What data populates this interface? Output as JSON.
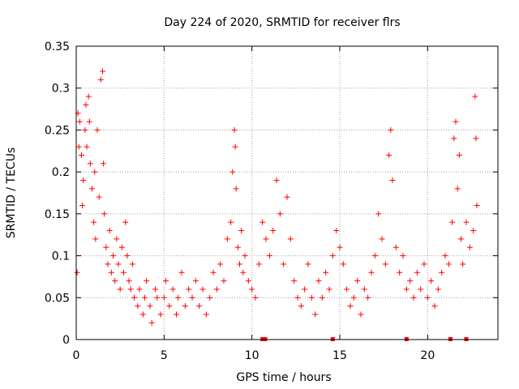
{
  "chart_data": {
    "type": "scatter",
    "title": "Day 224 of 2020, SRMTID for receiver flrs",
    "xlabel": "GPS time / hours",
    "ylabel": "SRMTID / TECUs",
    "xlim": [
      0,
      24
    ],
    "ylim": [
      0,
      0.35
    ],
    "x_ticks": [
      0,
      5,
      10,
      15,
      20
    ],
    "y_ticks": [
      0,
      0.05,
      0.1,
      0.15,
      0.2,
      0.25,
      0.3,
      0.35
    ],
    "x_tick_labels": [
      "0",
      "5",
      "10",
      "15",
      "20"
    ],
    "y_tick_labels": [
      "0",
      "0.05",
      "0.1",
      "0.15",
      "0.2",
      "0.25",
      "0.3",
      "0.35"
    ],
    "grid": true,
    "marker": "+",
    "color": "#ff0000",
    "gap_markers_x": [
      10.6,
      10.75,
      14.6,
      18.8,
      21.3,
      22.2
    ],
    "series": [
      {
        "name": "SRMTID",
        "points": [
          [
            0.05,
            0.08
          ],
          [
            0.1,
            0.27
          ],
          [
            0.15,
            0.23
          ],
          [
            0.2,
            0.26
          ],
          [
            0.3,
            0.22
          ],
          [
            0.35,
            0.16
          ],
          [
            0.4,
            0.19
          ],
          [
            0.5,
            0.25
          ],
          [
            0.55,
            0.28
          ],
          [
            0.6,
            0.23
          ],
          [
            0.7,
            0.29
          ],
          [
            0.75,
            0.26
          ],
          [
            0.8,
            0.21
          ],
          [
            0.9,
            0.18
          ],
          [
            1.0,
            0.14
          ],
          [
            1.05,
            0.2
          ],
          [
            1.1,
            0.12
          ],
          [
            1.2,
            0.25
          ],
          [
            1.3,
            0.17
          ],
          [
            1.4,
            0.31
          ],
          [
            1.5,
            0.32
          ],
          [
            1.55,
            0.21
          ],
          [
            1.6,
            0.15
          ],
          [
            1.7,
            0.11
          ],
          [
            1.8,
            0.09
          ],
          [
            1.9,
            0.13
          ],
          [
            2.0,
            0.08
          ],
          [
            2.1,
            0.1
          ],
          [
            2.2,
            0.07
          ],
          [
            2.3,
            0.12
          ],
          [
            2.4,
            0.09
          ],
          [
            2.5,
            0.06
          ],
          [
            2.6,
            0.11
          ],
          [
            2.7,
            0.08
          ],
          [
            2.8,
            0.14
          ],
          [
            2.9,
            0.1
          ],
          [
            3.0,
            0.07
          ],
          [
            3.1,
            0.06
          ],
          [
            3.2,
            0.09
          ],
          [
            3.3,
            0.05
          ],
          [
            3.5,
            0.04
          ],
          [
            3.6,
            0.06
          ],
          [
            3.8,
            0.03
          ],
          [
            3.9,
            0.05
          ],
          [
            4.0,
            0.07
          ],
          [
            4.2,
            0.04
          ],
          [
            4.3,
            0.02
          ],
          [
            4.5,
            0.06
          ],
          [
            4.6,
            0.05
          ],
          [
            4.8,
            0.03
          ],
          [
            5.0,
            0.05
          ],
          [
            5.1,
            0.07
          ],
          [
            5.3,
            0.04
          ],
          [
            5.5,
            0.06
          ],
          [
            5.7,
            0.03
          ],
          [
            5.8,
            0.05
          ],
          [
            6.0,
            0.08
          ],
          [
            6.2,
            0.04
          ],
          [
            6.4,
            0.06
          ],
          [
            6.6,
            0.05
          ],
          [
            6.8,
            0.07
          ],
          [
            7.0,
            0.04
          ],
          [
            7.2,
            0.06
          ],
          [
            7.4,
            0.03
          ],
          [
            7.6,
            0.05
          ],
          [
            7.8,
            0.08
          ],
          [
            8.0,
            0.06
          ],
          [
            8.2,
            0.09
          ],
          [
            8.4,
            0.07
          ],
          [
            8.6,
            0.12
          ],
          [
            8.8,
            0.14
          ],
          [
            8.9,
            0.2
          ],
          [
            9.0,
            0.25
          ],
          [
            9.05,
            0.23
          ],
          [
            9.1,
            0.18
          ],
          [
            9.2,
            0.11
          ],
          [
            9.3,
            0.09
          ],
          [
            9.4,
            0.13
          ],
          [
            9.5,
            0.08
          ],
          [
            9.6,
            0.1
          ],
          [
            9.8,
            0.07
          ],
          [
            10.0,
            0.06
          ],
          [
            10.2,
            0.05
          ],
          [
            10.4,
            0.09
          ],
          [
            10.6,
            0.14
          ],
          [
            10.8,
            0.12
          ],
          [
            11.0,
            0.1
          ],
          [
            11.2,
            0.13
          ],
          [
            11.4,
            0.19
          ],
          [
            11.6,
            0.15
          ],
          [
            11.8,
            0.09
          ],
          [
            12.0,
            0.17
          ],
          [
            12.2,
            0.12
          ],
          [
            12.4,
            0.07
          ],
          [
            12.6,
            0.05
          ],
          [
            12.8,
            0.04
          ],
          [
            13.0,
            0.06
          ],
          [
            13.2,
            0.09
          ],
          [
            13.4,
            0.05
          ],
          [
            13.6,
            0.03
          ],
          [
            13.8,
            0.07
          ],
          [
            14.0,
            0.05
          ],
          [
            14.2,
            0.08
          ],
          [
            14.4,
            0.06
          ],
          [
            14.6,
            0.1
          ],
          [
            14.8,
            0.13
          ],
          [
            15.0,
            0.11
          ],
          [
            15.2,
            0.09
          ],
          [
            15.4,
            0.06
          ],
          [
            15.6,
            0.04
          ],
          [
            15.8,
            0.05
          ],
          [
            16.0,
            0.07
          ],
          [
            16.2,
            0.03
          ],
          [
            16.4,
            0.06
          ],
          [
            16.6,
            0.05
          ],
          [
            16.8,
            0.08
          ],
          [
            17.0,
            0.1
          ],
          [
            17.2,
            0.15
          ],
          [
            17.4,
            0.12
          ],
          [
            17.6,
            0.09
          ],
          [
            17.8,
            0.22
          ],
          [
            17.9,
            0.25
          ],
          [
            18.0,
            0.19
          ],
          [
            18.2,
            0.11
          ],
          [
            18.4,
            0.08
          ],
          [
            18.6,
            0.1
          ],
          [
            18.8,
            0.06
          ],
          [
            19.0,
            0.07
          ],
          [
            19.2,
            0.05
          ],
          [
            19.4,
            0.08
          ],
          [
            19.6,
            0.06
          ],
          [
            19.8,
            0.09
          ],
          [
            20.0,
            0.05
          ],
          [
            20.2,
            0.07
          ],
          [
            20.4,
            0.04
          ],
          [
            20.6,
            0.06
          ],
          [
            20.8,
            0.08
          ],
          [
            21.0,
            0.1
          ],
          [
            21.2,
            0.09
          ],
          [
            21.4,
            0.14
          ],
          [
            21.5,
            0.24
          ],
          [
            21.6,
            0.26
          ],
          [
            21.7,
            0.18
          ],
          [
            21.8,
            0.22
          ],
          [
            21.9,
            0.12
          ],
          [
            22.0,
            0.09
          ],
          [
            22.2,
            0.14
          ],
          [
            22.4,
            0.11
          ],
          [
            22.6,
            0.13
          ],
          [
            22.7,
            0.29
          ],
          [
            22.75,
            0.24
          ],
          [
            22.8,
            0.16
          ]
        ]
      }
    ]
  }
}
